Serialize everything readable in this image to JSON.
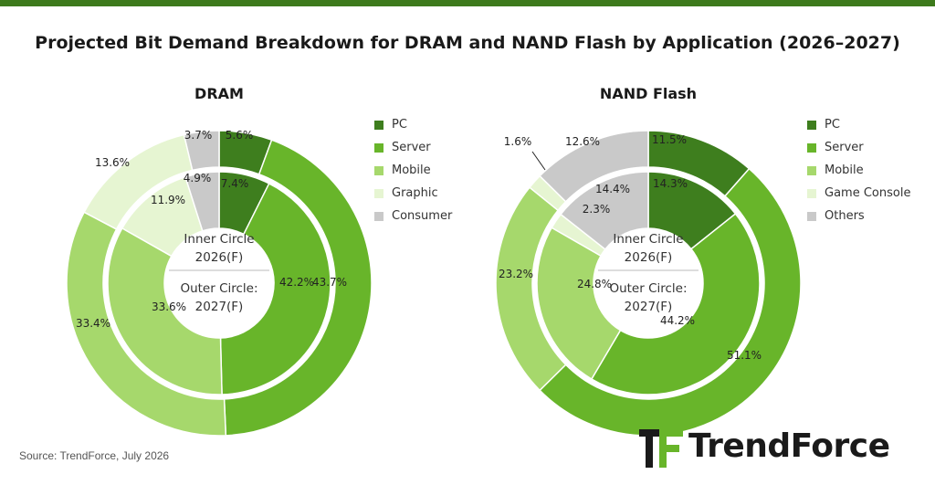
{
  "title": "Projected Bit Demand Breakdown for DRAM and NAND Flash by Application (2026–2027)",
  "source": "Source: TrendForce, July 2026",
  "logo_text": "TrendForce",
  "chart_data": [
    {
      "type": "pie",
      "title": "DRAM",
      "center_label": {
        "inner": "Inner Circle",
        "inner_year": "2026(F)",
        "outer": "Outer Circle:",
        "outer_year": "2027(F)"
      },
      "categories": [
        "PC",
        "Server",
        "Mobile",
        "Graphic",
        "Consumer"
      ],
      "colors": [
        "#3e7e1e",
        "#68b52a",
        "#a6d86c",
        "#e6f5d2",
        "#c9c9c9"
      ],
      "series": [
        {
          "name": "Inner Circle 2026(F)",
          "values": [
            7.4,
            42.2,
            33.6,
            11.9,
            4.9
          ]
        },
        {
          "name": "Outer Circle 2027(F)",
          "values": [
            5.6,
            43.7,
            33.4,
            13.6,
            3.7
          ]
        }
      ],
      "value_suffix": "%",
      "legend": "right"
    },
    {
      "type": "pie",
      "title": "NAND Flash",
      "center_label": {
        "inner": "Inner Circle",
        "inner_year": "2026(F)",
        "outer": "Outer Circle:",
        "outer_year": "2027(F)"
      },
      "categories": [
        "PC",
        "Server",
        "Mobile",
        "Game Console",
        "Others"
      ],
      "colors": [
        "#3e7e1e",
        "#68b52a",
        "#a6d86c",
        "#e6f5d2",
        "#c9c9c9"
      ],
      "series": [
        {
          "name": "Inner Circle 2026(F)",
          "values": [
            14.3,
            44.2,
            24.8,
            2.3,
            14.4
          ]
        },
        {
          "name": "Outer Circle 2027(F)",
          "values": [
            11.5,
            51.1,
            23.2,
            1.6,
            12.6
          ]
        }
      ],
      "value_suffix": "%",
      "legend": "right"
    }
  ]
}
